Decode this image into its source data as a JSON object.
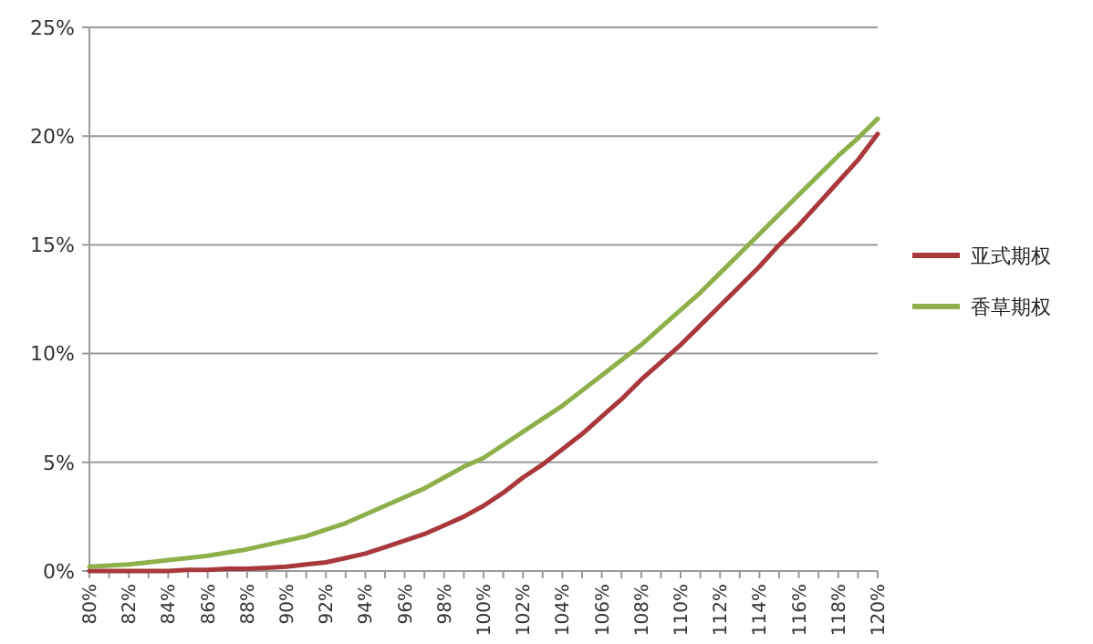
{
  "chart_data": {
    "type": "line",
    "categories": [
      "80%",
      null,
      "82%",
      null,
      "84%",
      null,
      "86%",
      null,
      "88%",
      null,
      "90%",
      null,
      "92%",
      null,
      "94%",
      null,
      "96%",
      null,
      "98%",
      null,
      "100%",
      null,
      "102%",
      null,
      "104%",
      null,
      "106%",
      null,
      "108%",
      null,
      "110%",
      null,
      "112%",
      null,
      "114%",
      null,
      "116%",
      null,
      "118%",
      null,
      "120%"
    ],
    "series": [
      {
        "name": "亚式期权",
        "color": "#a8383c",
        "values": [
          0,
          0,
          0,
          0,
          0,
          0.05,
          0.05,
          0.1,
          0.1,
          0.15,
          0.2,
          0.3,
          0.4,
          0.6,
          0.8,
          1.1,
          1.4,
          1.7,
          2.1,
          2.5,
          3.0,
          3.6,
          4.3,
          4.9,
          5.6,
          6.3,
          7.1,
          7.9,
          8.8,
          9.6,
          10.4,
          11.3,
          12.2,
          13.1,
          14.0,
          15.0,
          15.9,
          16.9,
          17.9,
          18.9,
          20.1
        ]
      },
      {
        "name": "香草期权",
        "color": "#8db04a",
        "values": [
          0.2,
          0.25,
          0.3,
          0.4,
          0.5,
          0.6,
          0.7,
          0.85,
          1.0,
          1.2,
          1.4,
          1.6,
          1.9,
          2.2,
          2.6,
          3.0,
          3.4,
          3.8,
          4.3,
          4.8,
          5.2,
          5.8,
          6.4,
          7.0,
          7.6,
          8.3,
          9.0,
          9.7,
          10.4,
          11.2,
          12.0,
          12.8,
          13.7,
          14.6,
          15.5,
          16.4,
          17.3,
          18.2,
          19.1,
          19.9,
          20.8
        ]
      }
    ],
    "ylim": [
      0,
      25
    ],
    "yticks": [
      {
        "value": 0,
        "label": "0%"
      },
      {
        "value": 5,
        "label": "5%"
      },
      {
        "value": 10,
        "label": "10%"
      },
      {
        "value": 15,
        "label": "15%"
      },
      {
        "value": 20,
        "label": "20%"
      },
      {
        "value": 25,
        "label": "25%"
      }
    ],
    "grid": "y",
    "legend": "right",
    "marker": "none",
    "line_style": "solid"
  }
}
